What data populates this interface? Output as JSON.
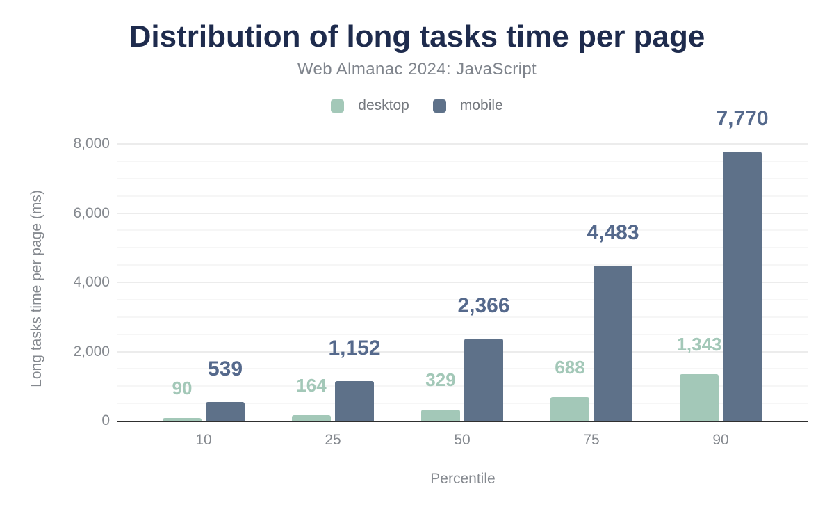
{
  "chart_data": {
    "type": "bar",
    "title": "Distribution of long tasks time per page",
    "subtitle": "Web Almanac 2024: JavaScript",
    "xlabel": "Percentile",
    "ylabel": "Long tasks time per page (ms)",
    "categories": [
      "10",
      "25",
      "50",
      "75",
      "90"
    ],
    "series": [
      {
        "name": "desktop",
        "color": "#a3c8b8",
        "label_color": "#a3c8b8",
        "values": [
          90,
          164,
          329,
          688,
          1343
        ],
        "labels": [
          "90",
          "164",
          "329",
          "688",
          "1,343"
        ]
      },
      {
        "name": "mobile",
        "color": "#5e7189",
        "label_color": "#55698c",
        "values": [
          539,
          1152,
          2366,
          4483,
          7770
        ],
        "labels": [
          "539",
          "1,152",
          "2,366",
          "4,483",
          "7,770"
        ]
      }
    ],
    "ylim": [
      0,
      8000
    ],
    "ytick_step": 2000,
    "minor_step": 500,
    "yticks": [
      "0",
      "2,000",
      "4,000",
      "6,000",
      "8,000"
    ],
    "grid": true,
    "legend_position": "top"
  },
  "colors": {
    "title": "#1e2b4d",
    "subtitle": "#7f848c",
    "tick_text": "#85898f",
    "legend_text": "#75797f",
    "axis_line": "#2f2f2f",
    "gridline_major": "#ececec",
    "gridline_minor": "#f6f6f6",
    "background": "#ffffff"
  }
}
